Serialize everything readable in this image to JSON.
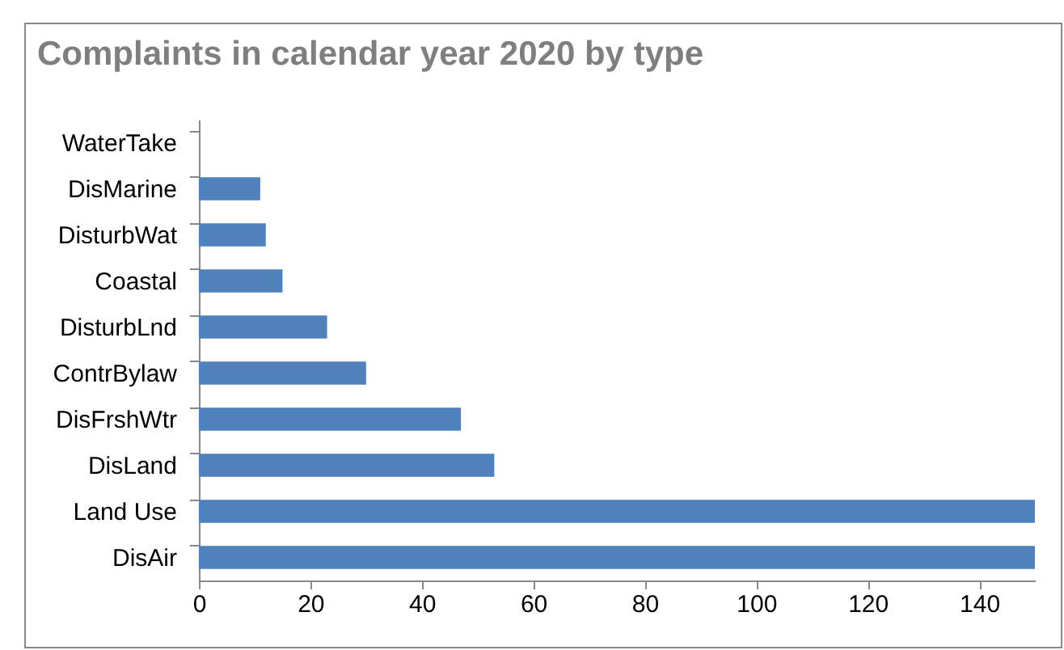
{
  "chart_data": {
    "type": "bar",
    "orientation": "horizontal",
    "title": "Complaints in calendar year 2020 by type",
    "categories": [
      "WaterTake",
      "DisMarine",
      "DisturbWat",
      "Coastal",
      "DisturbLnd",
      "ContrBylaw",
      "DisFrshWtr",
      "DisLand",
      "Land Use",
      "DisAir"
    ],
    "values": [
      0,
      11,
      12,
      15,
      23,
      30,
      47,
      53,
      150,
      150
    ],
    "color": "#4f81bd",
    "xlim": [
      0,
      150
    ],
    "xticks": [
      0,
      20,
      40,
      60,
      80,
      100,
      120,
      140
    ],
    "grid": false
  }
}
